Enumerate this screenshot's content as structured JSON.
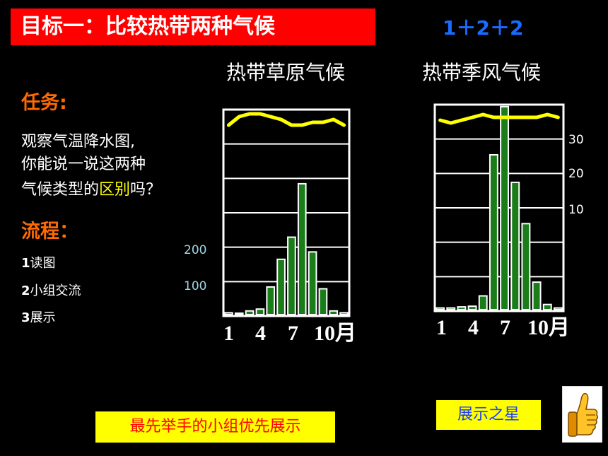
{
  "title": "目标一：比较热带两种气候",
  "badge": "1＋2＋2",
  "task": {
    "heading": "任务:",
    "line1": "观察气温降水图,",
    "line2": "你能说一说这两种",
    "line3_pre": "气候类型的",
    "line3_hl": "区别",
    "line3_post": "吗？"
  },
  "process": {
    "heading": "流程：",
    "steps": [
      {
        "num": "1",
        "text": "读图"
      },
      {
        "num": "2",
        "text": "小组交流"
      },
      {
        "num": "3",
        "text": "展示"
      }
    ]
  },
  "charts": [
    {
      "title": "热带草原气候",
      "month_labels": [
        "1",
        "4",
        "7",
        "10月"
      ],
      "precip_ticks": [
        "200",
        "100"
      ],
      "precip_tick_color": "#9fd6e8"
    },
    {
      "title": "热带季风气候",
      "month_labels": [
        "1",
        "4",
        "7",
        "10月"
      ],
      "temp_ticks": [
        "30",
        "20",
        "10"
      ],
      "temp_tick_color": "#ffffff"
    }
  ],
  "chart_data": [
    {
      "type": "bar",
      "categories": [
        "1",
        "2",
        "3",
        "4",
        "5",
        "6",
        "7",
        "8",
        "9",
        "10",
        "11",
        "12"
      ],
      "series": [
        {
          "values": [
            5,
            3,
            10,
            15,
            75,
            150,
            210,
            355,
            170,
            70,
            10,
            5
          ]
        }
      ],
      "temperature_line": [
        27,
        30,
        31,
        31,
        30,
        29,
        27,
        27,
        28,
        28,
        29,
        27
      ],
      "ylim": [
        0,
        560
      ],
      "bar_color": "#1a7d1a",
      "line_color": "#ffff00"
    },
    {
      "type": "bar",
      "categories": [
        "1",
        "2",
        "3",
        "4",
        "5",
        "6",
        "7",
        "8",
        "9",
        "10",
        "11",
        "12"
      ],
      "series": [
        {
          "values": [
            5,
            5,
            8,
            10,
            40,
            450,
            590,
            370,
            250,
            80,
            15,
            5
          ]
        }
      ],
      "temperature_line": [
        27,
        26,
        27,
        28,
        29,
        28,
        28,
        28,
        28,
        28,
        29,
        28
      ],
      "ylim": [
        0,
        600
      ],
      "bar_color": "#1a7d1a",
      "line_color": "#ffff00"
    }
  ],
  "note": "最先举手的小组优先展示",
  "star_label": "展示之星",
  "thumb_icon": "thumbs-up-icon"
}
